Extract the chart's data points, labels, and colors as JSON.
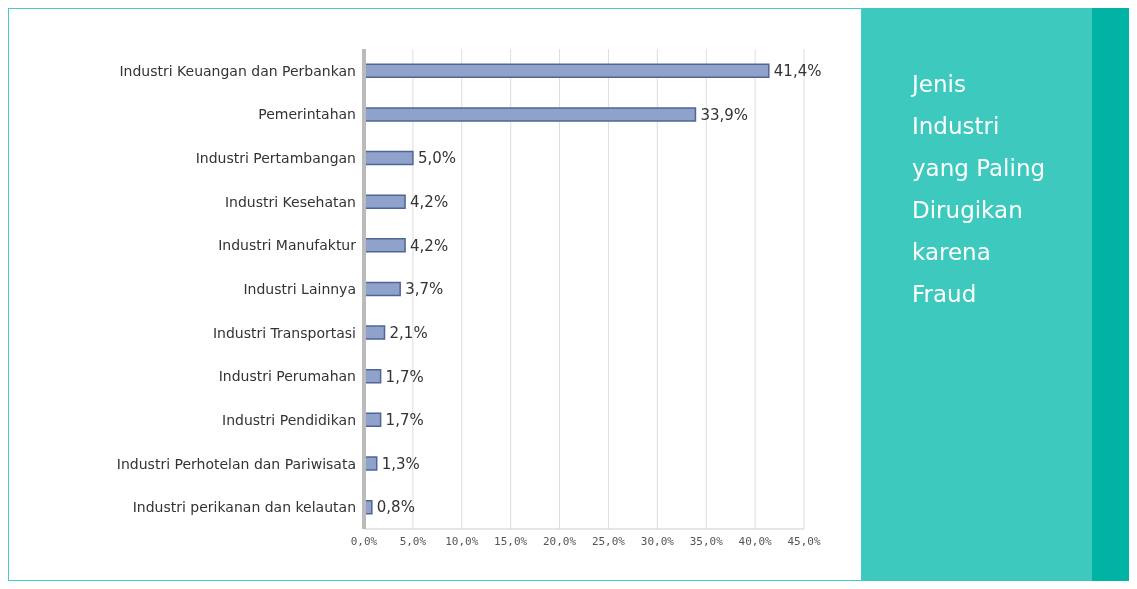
{
  "chart_data": {
    "type": "bar",
    "orientation": "horizontal",
    "title": "Jenis Industri yang Paling Dirugikan karena Fraud",
    "categories": [
      "Industri Keuangan dan Perbankan",
      "Pemerintahan",
      "Industri Pertambangan",
      "Industri Kesehatan",
      "Industri Manufaktur",
      "Industri Lainnya",
      "Industri Transportasi",
      "Industri Perumahan",
      "Industri Pendidikan",
      "Industri Perhotelan dan Pariwisata",
      "Industri perikanan dan kelautan"
    ],
    "values": [
      41.4,
      33.9,
      5.0,
      4.2,
      4.2,
      3.7,
      2.1,
      1.7,
      1.7,
      1.3,
      0.8
    ],
    "value_labels": [
      "41,4%",
      "33,9%",
      "5,0%",
      "4,2%",
      "4,2%",
      "3,7%",
      "2,1%",
      "1,7%",
      "1,7%",
      "1,3%",
      "0,8%"
    ],
    "color": "#8fa2cc",
    "xlim": [
      0,
      45
    ],
    "xticks": [
      {
        "value": 0,
        "label": "0,0%"
      },
      {
        "value": 5,
        "label": "5,0%"
      },
      {
        "value": 10,
        "label": "10,0%"
      },
      {
        "value": 15,
        "label": "15,0%"
      },
      {
        "value": 20,
        "label": "20,0%"
      },
      {
        "value": 25,
        "label": "25,0%"
      },
      {
        "value": 30,
        "label": "30,0%"
      },
      {
        "value": 35,
        "label": "35,0%"
      },
      {
        "value": 40,
        "label": "40,0%"
      },
      {
        "value": 45,
        "label": "45,0%"
      }
    ],
    "grid": "x"
  }
}
